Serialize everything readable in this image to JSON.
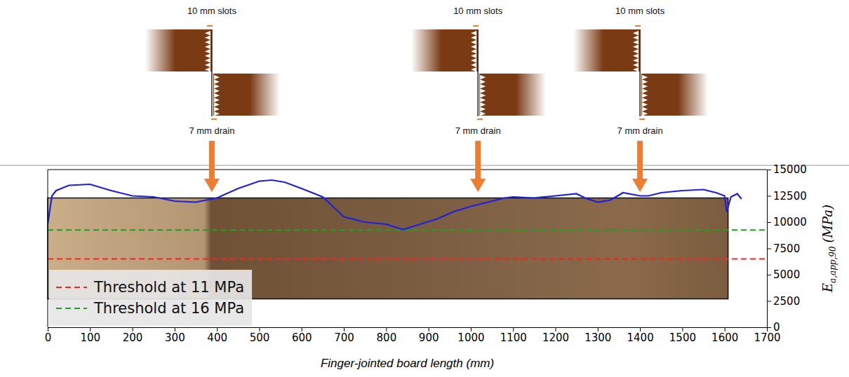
{
  "chart_data": {
    "type": "line",
    "xlabel": "Finger-jointed board length (mm)",
    "ylabel": {
      "symbol": "E",
      "subscript": "a,app,90",
      "unit": "(MPa)"
    },
    "x": [
      0,
      10,
      20,
      50,
      100,
      150,
      200,
      250,
      300,
      350,
      400,
      450,
      500,
      530,
      560,
      600,
      650,
      700,
      750,
      800,
      840,
      880,
      920,
      960,
      1000,
      1040,
      1080,
      1100,
      1150,
      1200,
      1250,
      1270,
      1300,
      1330,
      1360,
      1400,
      1420,
      1450,
      1500,
      1550,
      1580,
      1600,
      1605,
      1615,
      1630,
      1640
    ],
    "series": [
      {
        "color": "#1f1fe0",
        "values": [
          9800,
          12500,
          13000,
          13500,
          13600,
          13000,
          12500,
          12400,
          12000,
          11900,
          12300,
          13200,
          13900,
          14000,
          13800,
          13200,
          12400,
          10500,
          10000,
          9800,
          9300,
          9800,
          10300,
          11000,
          11500,
          11900,
          12300,
          12400,
          12300,
          12500,
          12700,
          12300,
          11900,
          12100,
          12800,
          12500,
          12500,
          12800,
          13000,
          13100,
          12800,
          12500,
          11000,
          12400,
          12700,
          12200
        ]
      }
    ],
    "thresholds": [
      {
        "name": "Threshold at 11 MPa",
        "value": 6500,
        "color": "#ff2020",
        "line_style": "dashed"
      },
      {
        "name": "Threshold at 16 MPa",
        "value": 9250,
        "color": "#1fa01f",
        "line_style": "dashed"
      }
    ],
    "annotations": [
      {
        "x": 388,
        "top_label": "10 mm slots",
        "bottom_label": "7 mm drain"
      },
      {
        "x": 1017,
        "top_label": "10 mm slots",
        "bottom_label": "7 mm drain"
      },
      {
        "x": 1400,
        "top_label": "10 mm slots",
        "bottom_label": "7 mm drain"
      }
    ],
    "xlim": [
      0,
      1700
    ],
    "ylim": [
      0,
      15000
    ],
    "xticks": [
      0,
      100,
      200,
      300,
      400,
      500,
      600,
      700,
      800,
      900,
      1000,
      1100,
      1200,
      1300,
      1400,
      1500,
      1600,
      1700
    ],
    "yticks": [
      0,
      2500,
      5000,
      7500,
      10000,
      12500,
      15000
    ],
    "legend": "lower left",
    "grid": false
  }
}
